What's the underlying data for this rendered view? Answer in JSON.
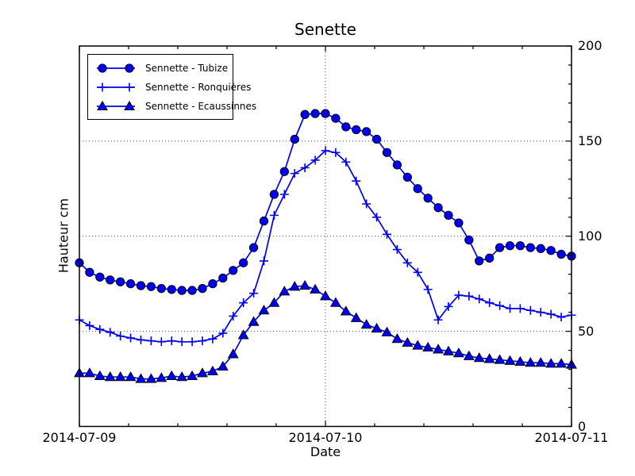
{
  "colors": {
    "series_blue": "#0000ee",
    "marker_edge": "#000000",
    "grid_dotted": "#444444",
    "axis": "#000000",
    "text": "#000000",
    "background": "#ffffff"
  },
  "chart_data": {
    "type": "line",
    "title": "Senette",
    "xlabel": "Date",
    "ylabel": "Hauteur cm",
    "x_origin": "2014-07-09 00:00",
    "x_step_hours": 1,
    "xlim_hours": [
      0,
      48
    ],
    "ylim": [
      0,
      200
    ],
    "x_major_ticks": [
      {
        "hour": 0,
        "label": "2014-07-09"
      },
      {
        "hour": 24,
        "label": "2014-07-10"
      },
      {
        "hour": 48,
        "label": "2014-07-11"
      }
    ],
    "x_minor_tick_step_hours": 4.8,
    "y_major_ticks": [
      {
        "value": 0,
        "label": "0"
      },
      {
        "value": 50,
        "label": "50"
      },
      {
        "value": 100,
        "label": "100"
      },
      {
        "value": 150,
        "label": "150"
      },
      {
        "value": 200,
        "label": "200"
      }
    ],
    "y_minor_tick_step": 10,
    "grid": {
      "style": "dotted",
      "horizontal_values": [
        50,
        100,
        150
      ],
      "vertical_hours": [
        24
      ]
    },
    "legend_position": "upper left",
    "series": [
      {
        "name": "Sennette - Tubize",
        "marker": "circle",
        "values": [
          86,
          81,
          78.5,
          77,
          76,
          75,
          74,
          73.5,
          72.5,
          72,
          71.5,
          71.5,
          72.5,
          75,
          78,
          82,
          86,
          94,
          108,
          122,
          134,
          151,
          164,
          164.5,
          164.5,
          162,
          157.5,
          156,
          155,
          151,
          144,
          137.5,
          131,
          125,
          120,
          115,
          111,
          107,
          98,
          87,
          88.5,
          94,
          95,
          95,
          94,
          93.5,
          92.5,
          90.5,
          89.5
        ]
      },
      {
        "name": "Sennette - Ronquières",
        "marker": "plus",
        "values": [
          56,
          53,
          51,
          49.5,
          47.5,
          46.5,
          45.5,
          45,
          44.5,
          45,
          44.5,
          44.5,
          45,
          46,
          49,
          58,
          65,
          70,
          87,
          111,
          122,
          133,
          136,
          140,
          145,
          144,
          139,
          129,
          117,
          110,
          101,
          93,
          86,
          81,
          72,
          56,
          63,
          69,
          68.5,
          67,
          65,
          63.5,
          62,
          62,
          61,
          60,
          59,
          57.5,
          58.5
        ]
      },
      {
        "name": "Sennette - Ecaussinnes",
        "marker": "triangle-up",
        "values": [
          28,
          28,
          26.5,
          26,
          26,
          26,
          25,
          25,
          25.5,
          26.5,
          26,
          26.5,
          28,
          29,
          31.5,
          38,
          48,
          55,
          61,
          65,
          71,
          73.5,
          74,
          72,
          68.5,
          65,
          60.5,
          57,
          53.5,
          51.5,
          49.5,
          46,
          44,
          42.5,
          41.5,
          40.5,
          39.5,
          38.5,
          37,
          36,
          35.5,
          35,
          34.5,
          34,
          33.5,
          33.5,
          33,
          33,
          32.5
        ]
      }
    ]
  }
}
